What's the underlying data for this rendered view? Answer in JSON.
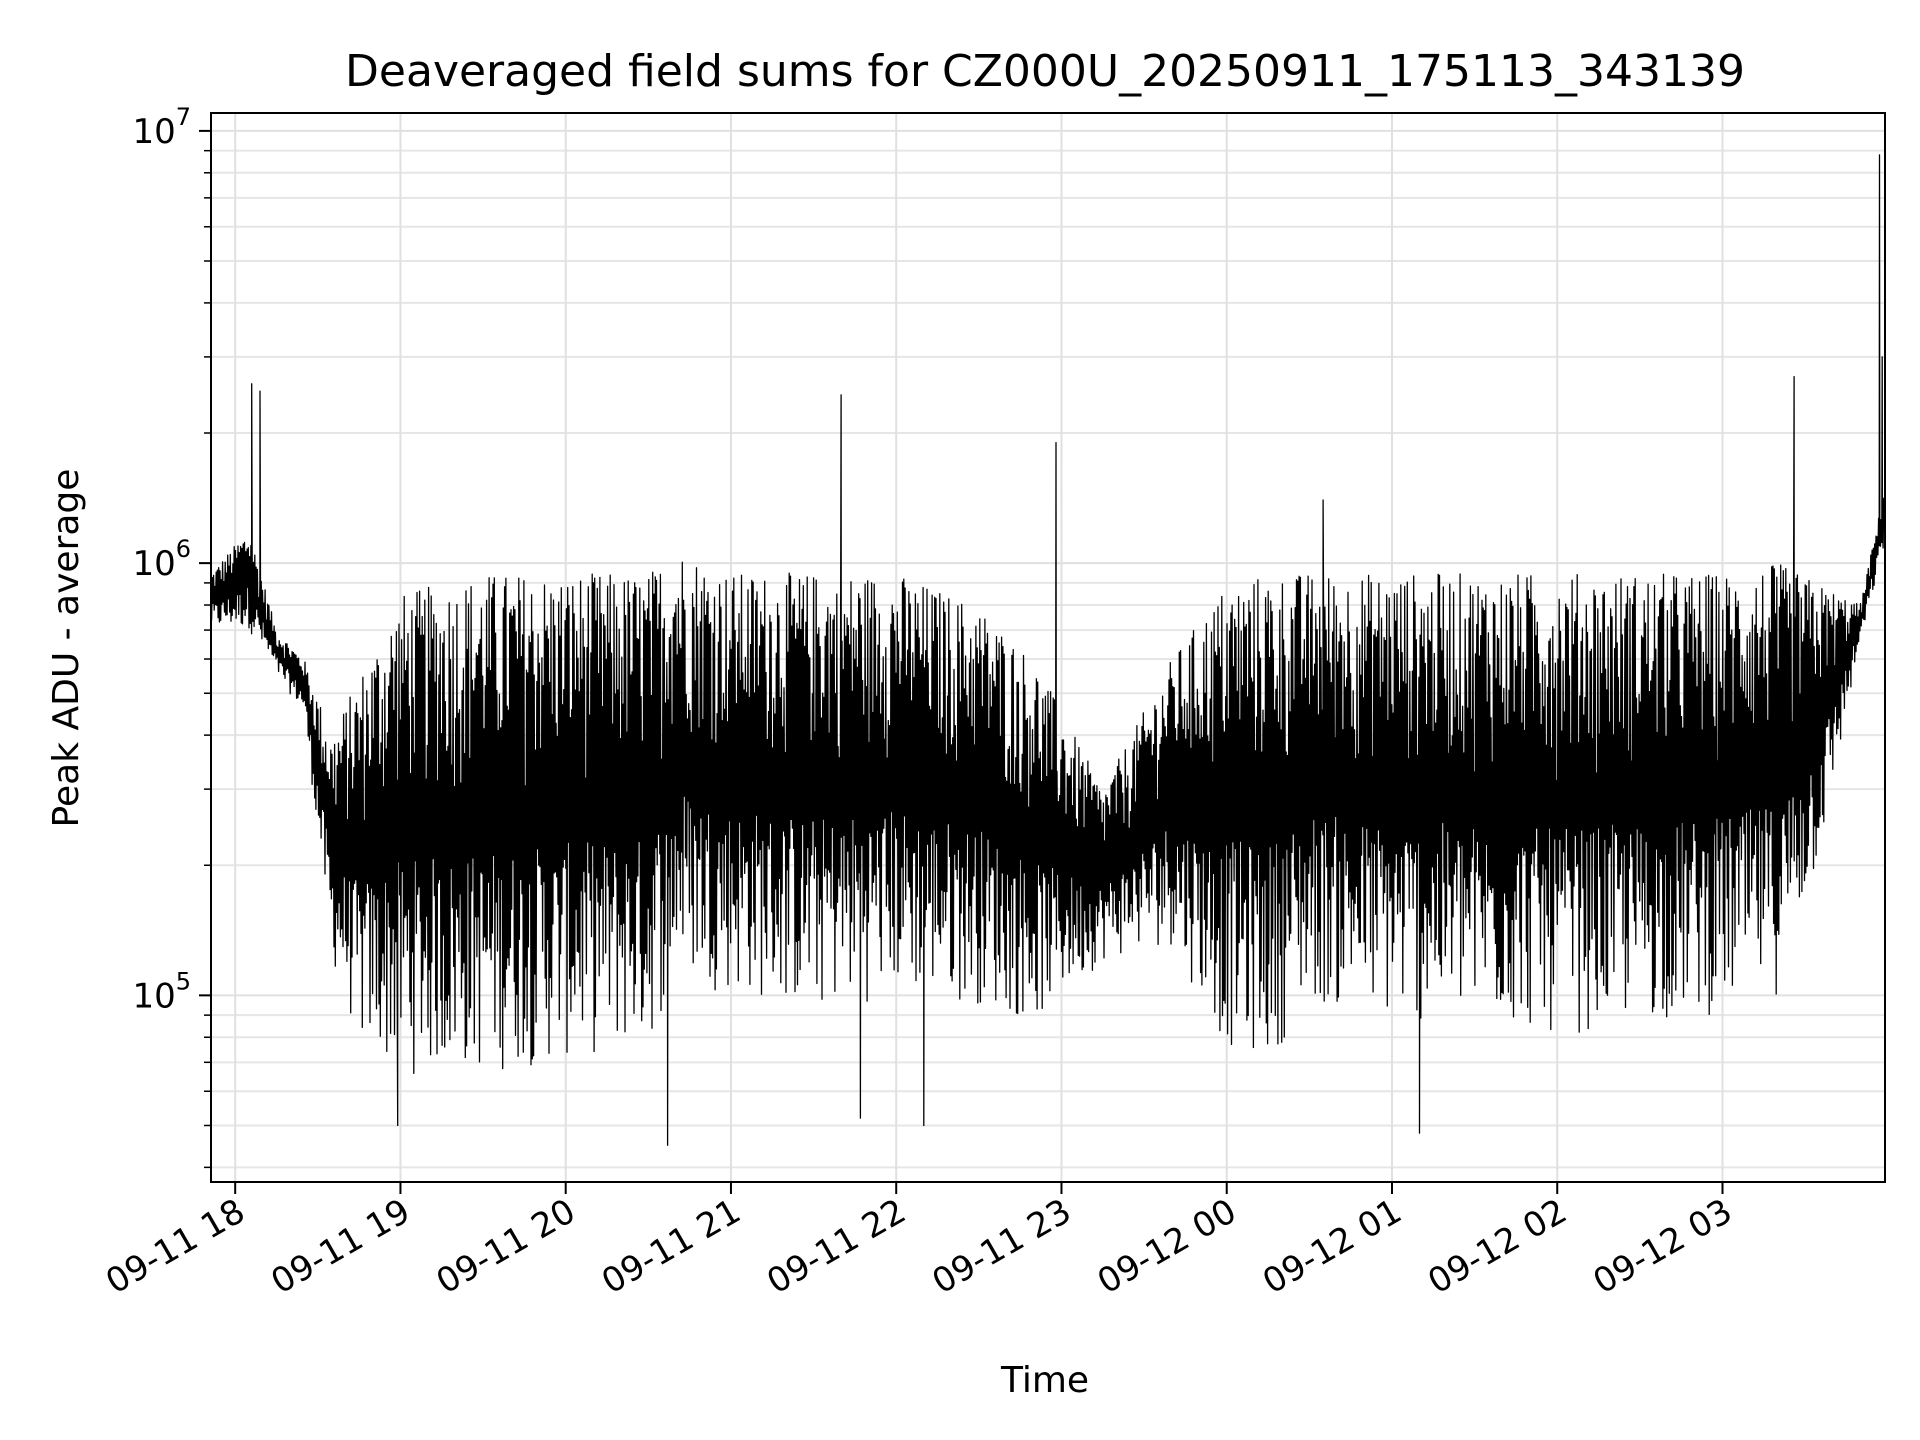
{
  "chart_data": {
    "type": "line",
    "title": "Deaveraged field sums for CZ000U_20250911_175113_343139",
    "xlabel": "Time",
    "ylabel": "Peak ADU - average",
    "yscale": "log",
    "ylim": [
      37000,
      11000000
    ],
    "xlim": [
      "2025-09-11T17:51:13",
      "2025-09-12T03:59:00"
    ],
    "grid": true,
    "line_color": "#000000",
    "x_ticks": [
      {
        "label": "09-11 18",
        "t": "2025-09-11T18:00:00"
      },
      {
        "label": "09-11 19",
        "t": "2025-09-11T19:00:00"
      },
      {
        "label": "09-11 20",
        "t": "2025-09-11T20:00:00"
      },
      {
        "label": "09-11 21",
        "t": "2025-09-11T21:00:00"
      },
      {
        "label": "09-11 22",
        "t": "2025-09-11T22:00:00"
      },
      {
        "label": "09-11 23",
        "t": "2025-09-11T23:00:00"
      },
      {
        "label": "09-12 00",
        "t": "2025-09-12T00:00:00"
      },
      {
        "label": "09-12 01",
        "t": "2025-09-12T01:00:00"
      },
      {
        "label": "09-12 02",
        "t": "2025-09-12T02:00:00"
      },
      {
        "label": "09-12 03",
        "t": "2025-09-12T03:00:00"
      }
    ],
    "y_ticks": [
      {
        "base": "10",
        "exp": "5",
        "value": 100000
      },
      {
        "base": "10",
        "exp": "6",
        "value": 1000000
      },
      {
        "base": "10",
        "exp": "7",
        "value": 10000000
      }
    ],
    "envelope": {
      "t": [
        "2025-09-11T17:51:13",
        "2025-09-11T18:05:00",
        "2025-09-11T18:15:00",
        "2025-09-11T18:25:00",
        "2025-09-11T18:35:00",
        "2025-09-11T18:45:00",
        "2025-09-11T19:00:00",
        "2025-09-11T19:30:00",
        "2025-09-11T20:00:00",
        "2025-09-11T20:30:00",
        "2025-09-11T20:40:00",
        "2025-09-11T21:00:00",
        "2025-09-11T21:30:00",
        "2025-09-11T22:00:00",
        "2025-09-11T22:30:00",
        "2025-09-11T22:50:00",
        "2025-09-11T23:15:00",
        "2025-09-11T23:40:00",
        "2025-09-12T00:00:00",
        "2025-09-12T00:15:00",
        "2025-09-12T00:30:00",
        "2025-09-12T01:00:00",
        "2025-09-12T01:30:00",
        "2025-09-12T02:00:00",
        "2025-09-12T02:30:00",
        "2025-09-12T03:00:00",
        "2025-09-12T03:20:00",
        "2025-09-12T03:35:00",
        "2025-09-12T03:50:00",
        "2025-09-12T03:59:00"
      ],
      "high": [
        950000,
        1200000,
        700000,
        600000,
        400000,
        550000,
        850000,
        950000,
        950000,
        950000,
        1100000,
        950000,
        950000,
        950000,
        800000,
        600000,
        300000,
        600000,
        900000,
        950000,
        950000,
        950000,
        950000,
        950000,
        950000,
        950000,
        1000000,
        900000,
        800000,
        1500000
      ],
      "low": [
        700000,
        700000,
        550000,
        450000,
        120000,
        75000,
        65000,
        65000,
        70000,
        75000,
        110000,
        100000,
        90000,
        100000,
        95000,
        85000,
        120000,
        130000,
        75000,
        70000,
        95000,
        85000,
        85000,
        80000,
        85000,
        90000,
        100000,
        200000,
        650000,
        1100000
      ]
    },
    "spikes": [
      {
        "t": "2025-09-11T18:06:00",
        "value": 2600000
      },
      {
        "t": "2025-09-11T18:09:00",
        "value": 2500000
      },
      {
        "t": "2025-09-11T21:40:00",
        "value": 2450000
      },
      {
        "t": "2025-09-11T22:58:00",
        "value": 1900000
      },
      {
        "t": "2025-09-12T00:35:00",
        "value": 1400000
      },
      {
        "t": "2025-09-12T03:26:00",
        "value": 2700000
      },
      {
        "t": "2025-09-12T03:57:00",
        "value": 8800000
      },
      {
        "t": "2025-09-12T03:58:00",
        "value": 3000000
      }
    ],
    "dips": [
      {
        "t": "2025-09-11T18:59:00",
        "value": 50000
      },
      {
        "t": "2025-09-11T20:37:00",
        "value": 45000
      },
      {
        "t": "2025-09-11T21:47:00",
        "value": 52000
      },
      {
        "t": "2025-09-11T22:10:00",
        "value": 50000
      },
      {
        "t": "2025-09-12T01:10:00",
        "value": 48000
      }
    ]
  }
}
